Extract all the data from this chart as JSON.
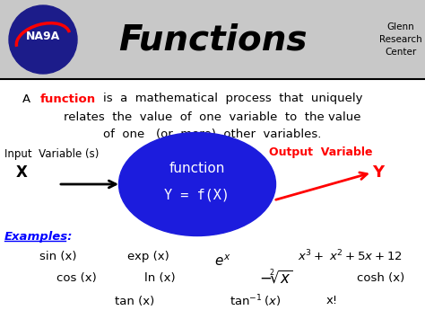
{
  "title": "Functions",
  "bg_color": "#ffffff",
  "header_bg": "#c8c8c8",
  "glenn_text": "Glenn\nResearch\nCenter",
  "ellipse_color": "#1c1cdd",
  "ellipse_text1": "function",
  "ellipse_text2": "Y = f(X)",
  "figsize": [
    4.74,
    3.55
  ],
  "dpi": 100
}
